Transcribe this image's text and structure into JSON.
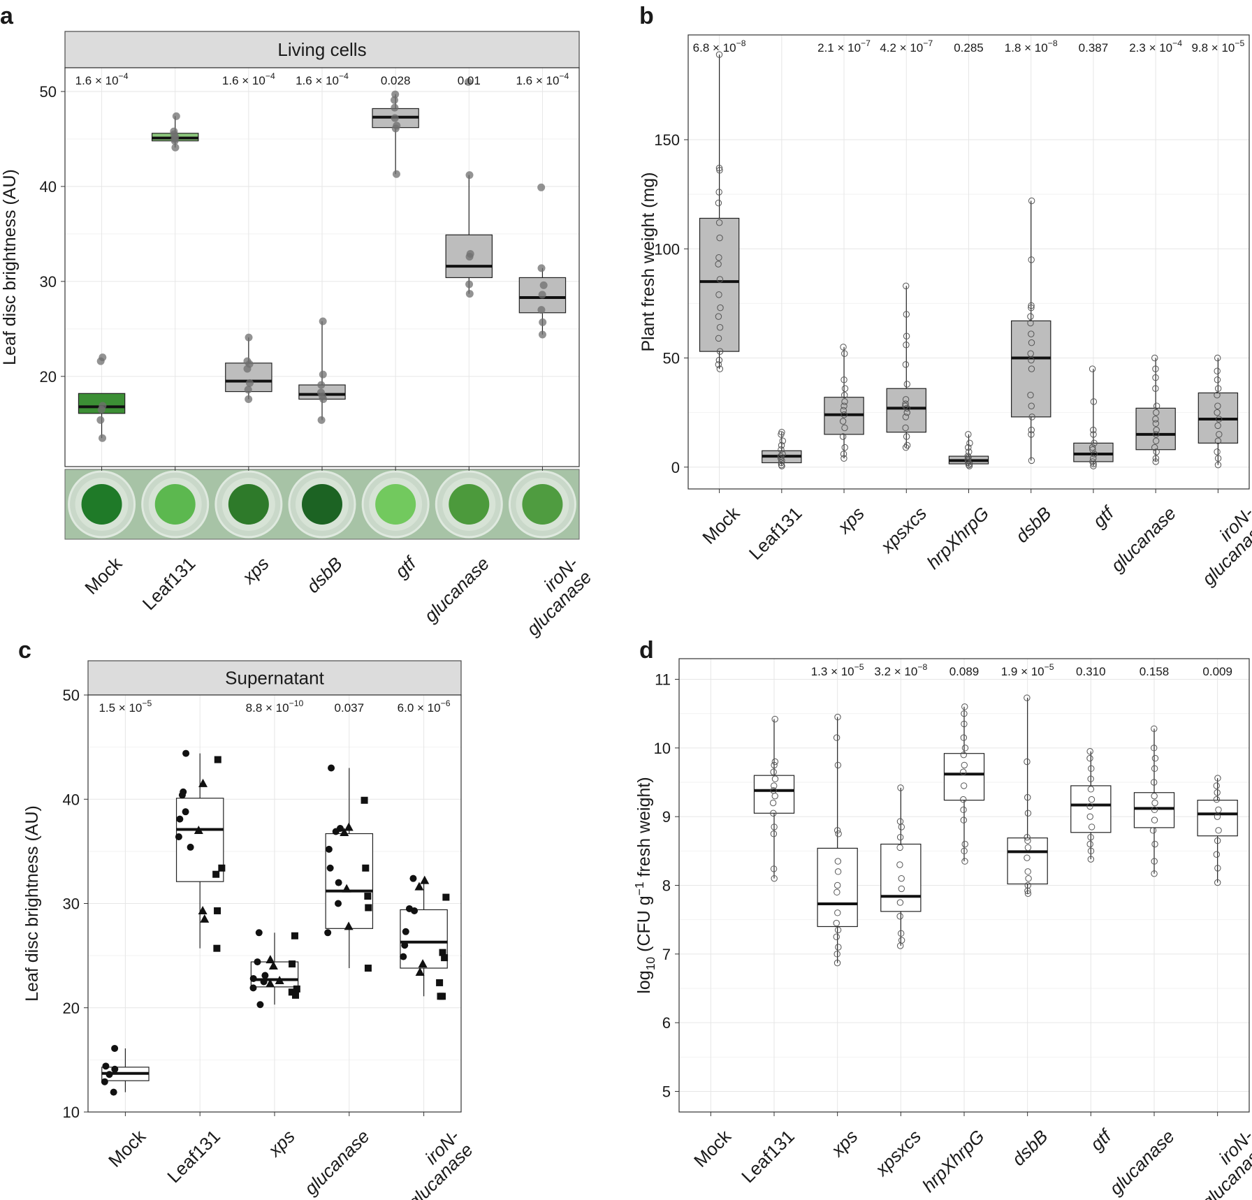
{
  "panel_labels": [
    "a",
    "b",
    "c",
    "d"
  ],
  "chart_data": [
    {
      "id": "a",
      "type": "box",
      "title": "Living cells",
      "ylabel": "Leaf disc brightness (AU)",
      "ylim": [
        10.5,
        52.5
      ],
      "yticks": [
        20,
        30,
        40,
        50
      ],
      "categories": [
        "Mock",
        "Leaf131",
        "xps",
        "dsbB",
        "gtf",
        "glucanase",
        "iroN-\nglucanase"
      ],
      "pvalues": [
        "1.6 × 10^-4",
        "",
        "1.6 × 10^-4",
        "1.6 × 10^-4",
        "0.028",
        "0.01",
        "1.6 × 10^-4"
      ],
      "box_colors": [
        "#3c8f35",
        "#8cc87c",
        "#bdbdbd",
        "#bdbdbd",
        "#bdbdbd",
        "#bdbdbd",
        "#bdbdbd"
      ],
      "boxes": [
        {
          "q1": 16.1,
          "median": 16.8,
          "q3": 18.2,
          "wlo": 13.5,
          "whi": 18.2
        },
        {
          "q1": 44.8,
          "median": 45.1,
          "q3": 45.6,
          "wlo": 44.1,
          "whi": 47.4
        },
        {
          "q1": 18.4,
          "median": 19.5,
          "q3": 21.4,
          "wlo": 17.6,
          "whi": 24.1
        },
        {
          "q1": 17.6,
          "median": 18.1,
          "q3": 19.1,
          "wlo": 15.4,
          "whi": 25.8
        },
        {
          "q1": 46.2,
          "median": 47.3,
          "q3": 48.2,
          "wlo": 41.3,
          "whi": 49.7
        },
        {
          "q1": 30.4,
          "median": 31.6,
          "q3": 34.9,
          "wlo": 28.7,
          "whi": 41.2
        },
        {
          "q1": 26.7,
          "median": 28.3,
          "q3": 30.4,
          "wlo": 24.4,
          "whi": 31.4
        }
      ],
      "points": [
        [
          13.5,
          15.4,
          16.5,
          16.9,
          21.6,
          22.0
        ],
        [
          44.1,
          44.8,
          45.0,
          45.2,
          45.5,
          45.8,
          47.4
        ],
        [
          17.6,
          18.6,
          19.3,
          20.8,
          21.3,
          21.6,
          24.1
        ],
        [
          15.4,
          17.6,
          17.9,
          18.3,
          19.1,
          20.2,
          25.8
        ],
        [
          41.3,
          46.1,
          46.4,
          47.2,
          48.3,
          49.1,
          49.7
        ],
        [
          28.7,
          29.7,
          32.6,
          32.9,
          41.2,
          51.0
        ],
        [
          24.4,
          25.7,
          27.0,
          28.6,
          29.6,
          31.4,
          39.9
        ]
      ],
      "image_strip": {
        "well_colors": [
          "#1f7a28",
          "#5cb84f",
          "#2e7a2a",
          "#1c6323",
          "#72c95e",
          "#4c9a3c",
          "#4f9c40"
        ],
        "background": "#a7c3a6"
      }
    },
    {
      "id": "b",
      "type": "box",
      "title": "",
      "ylabel": "Plant fresh weight (mg)",
      "ylim": [
        -10,
        198
      ],
      "yticks": [
        0,
        50,
        100,
        150
      ],
      "categories": [
        "Mock",
        "Leaf131",
        "xps",
        "xpsxcs",
        "hrpXhrpG",
        "dsbB",
        "gtf",
        "glucanase",
        "iroN-\nglucanase"
      ],
      "pvalues": [
        "6.8 × 10^-8",
        "",
        "2.1 × 10^-7",
        "4.2 × 10^-7",
        "0.285",
        "1.8 × 10^-8",
        "0.387",
        "2.3 × 10^-4",
        "9.8 × 10^-5"
      ],
      "box_colors": [
        "#bdbdbd",
        "#bdbdbd",
        "#bdbdbd",
        "#bdbdbd",
        "#bdbdbd",
        "#bdbdbd",
        "#bdbdbd",
        "#bdbdbd",
        "#bdbdbd"
      ],
      "boxes": [
        {
          "q1": 53,
          "median": 85,
          "q3": 114,
          "wlo": 45,
          "whi": 189
        },
        {
          "q1": 2,
          "median": 5,
          "q3": 7.5,
          "wlo": 0.5,
          "whi": 16
        },
        {
          "q1": 15,
          "median": 24,
          "q3": 32,
          "wlo": 4,
          "whi": 55
        },
        {
          "q1": 16,
          "median": 27,
          "q3": 36,
          "wlo": 9,
          "whi": 83
        },
        {
          "q1": 1.5,
          "median": 3,
          "q3": 5,
          "wlo": 0.5,
          "whi": 15
        },
        {
          "q1": 23,
          "median": 50,
          "q3": 67,
          "wlo": 3,
          "whi": 122
        },
        {
          "q1": 2.5,
          "median": 6,
          "q3": 11,
          "wlo": 0.5,
          "whi": 45
        },
        {
          "q1": 8,
          "median": 15,
          "q3": 27,
          "wlo": 2.5,
          "whi": 50
        },
        {
          "q1": 11,
          "median": 22,
          "q3": 34,
          "wlo": 1,
          "whi": 50
        }
      ],
      "points": [
        [
          45,
          47,
          49,
          53,
          59,
          64,
          69,
          73,
          79,
          86,
          93,
          96,
          105,
          112,
          121,
          126,
          136,
          137,
          189
        ],
        [
          0.5,
          1,
          2,
          3,
          4,
          5,
          6,
          8,
          10,
          12,
          15,
          16
        ],
        [
          4,
          6,
          9,
          14,
          18,
          21,
          24,
          26,
          28,
          30,
          33,
          36,
          40,
          52,
          55
        ],
        [
          9,
          10,
          14,
          18,
          23,
          25,
          27,
          28,
          29,
          31,
          38,
          47,
          56,
          60,
          70,
          83
        ],
        [
          0.5,
          1,
          1.5,
          2,
          3,
          3.5,
          4.5,
          5,
          7,
          9,
          11,
          15
        ],
        [
          3,
          15,
          17,
          23,
          28,
          33,
          45,
          49,
          52,
          57,
          61,
          66,
          69,
          73,
          74,
          95,
          122
        ],
        [
          0.5,
          1.5,
          2.5,
          4,
          6,
          8,
          9,
          11,
          15,
          17,
          30,
          45
        ],
        [
          2.5,
          4,
          7,
          9,
          12,
          15,
          17,
          20,
          22,
          25,
          28,
          36,
          41,
          45,
          50
        ],
        [
          1,
          4,
          7,
          12,
          15,
          19,
          22,
          25,
          28,
          33,
          36,
          40,
          44,
          50
        ]
      ]
    },
    {
      "id": "c",
      "type": "box",
      "title": "Supernatant",
      "ylabel": "Leaf disc brightness (AU)",
      "ylim": [
        10,
        50
      ],
      "yticks": [
        10,
        20,
        30,
        40,
        50
      ],
      "categories": [
        "Mock",
        "Leaf131",
        "xps",
        "glucanase",
        "iroN-\nglucanase"
      ],
      "pvalues": [
        "1.5 × 10^-5",
        "",
        "8.8 × 10^-10",
        "0.037",
        "6.0 × 10^-6"
      ],
      "box_colors": [
        "#ffffff",
        "#ffffff",
        "#ffffff",
        "#ffffff",
        "#ffffff"
      ],
      "boxes": [
        {
          "q1": 13.0,
          "median": 13.7,
          "q3": 14.3,
          "wlo": 11.9,
          "whi": 16.1
        },
        {
          "q1": 32.1,
          "median": 37.1,
          "q3": 40.1,
          "wlo": 25.7,
          "whi": 44.4
        },
        {
          "q1": 22.0,
          "median": 22.7,
          "q3": 24.4,
          "wlo": 20.3,
          "whi": 27.2
        },
        {
          "q1": 27.6,
          "median": 31.2,
          "q3": 36.7,
          "wlo": 23.8,
          "whi": 43.0
        },
        {
          "q1": 23.8,
          "median": 26.3,
          "q3": 29.4,
          "wlo": 21.1,
          "whi": 32.3
        }
      ],
      "points": [
        {
          "circle": [
            11.9,
            12.9,
            13.6,
            14.1,
            14.4,
            16.1
          ],
          "triangle": [],
          "square": []
        },
        {
          "circle": [
            44.4,
            40.7,
            40.4,
            38.8,
            38.1,
            36.4,
            35.4
          ],
          "triangle": [
            41.5,
            37.0,
            29.3,
            28.5
          ],
          "square": [
            43.8,
            33.4,
            32.8,
            29.3,
            25.7
          ]
        },
        {
          "circle": [
            27.2,
            24.4,
            23.1,
            22.8,
            22.5,
            21.9,
            20.3
          ],
          "triangle": [
            24.6,
            24.0,
            22.6,
            22.3
          ],
          "square": [
            26.9,
            24.2,
            21.8,
            21.5,
            21.2
          ]
        },
        {
          "circle": [
            43.0,
            37.2,
            36.9,
            35.2,
            33.4,
            32.0,
            30.0,
            27.2
          ],
          "triangle": [
            37.3,
            36.8,
            31.4,
            27.8
          ],
          "square": [
            39.9,
            33.4,
            30.7,
            29.6,
            23.8
          ]
        },
        {
          "circle": [
            32.4,
            29.5,
            29.3,
            27.3,
            26.0,
            24.9
          ],
          "triangle": [
            32.2,
            31.6,
            24.2,
            23.4
          ],
          "square": [
            30.6,
            25.3,
            24.8,
            22.4,
            21.1,
            21.1
          ]
        }
      ]
    },
    {
      "id": "d",
      "type": "box",
      "title": "",
      "ylabel": "log10 (CFU g^-1 fresh weight)",
      "ylim": [
        4.7,
        11.3
      ],
      "yticks": [
        5,
        6,
        7,
        8,
        9,
        10,
        11
      ],
      "categories": [
        "Mock",
        "Leaf131",
        "xps",
        "xpsxcs",
        "hrpXhrpG",
        "dsbB",
        "gtf",
        "glucanase",
        "iroN-\nglucanase"
      ],
      "pvalues": [
        "",
        "",
        "1.3 × 10^-5",
        "3.2 × 10^-8",
        "0.089",
        "1.9 × 10^-5",
        "0.310",
        "0.158",
        "0.009"
      ],
      "box_colors": [
        "#ffffff",
        "#ffffff",
        "#ffffff",
        "#ffffff",
        "#ffffff",
        "#ffffff",
        "#ffffff",
        "#ffffff",
        "#ffffff"
      ],
      "boxes": [
        null,
        {
          "q1": 9.05,
          "median": 9.38,
          "q3": 9.6,
          "wlo": 8.1,
          "whi": 10.42
        },
        {
          "q1": 7.4,
          "median": 7.73,
          "q3": 8.54,
          "wlo": 6.87,
          "whi": 10.45
        },
        {
          "q1": 7.62,
          "median": 7.84,
          "q3": 8.6,
          "wlo": 7.12,
          "whi": 9.42
        },
        {
          "q1": 9.24,
          "median": 9.62,
          "q3": 9.92,
          "wlo": 8.35,
          "whi": 10.6
        },
        {
          "q1": 8.02,
          "median": 8.49,
          "q3": 8.69,
          "wlo": 7.88,
          "whi": 10.73
        },
        {
          "q1": 8.77,
          "median": 9.17,
          "q3": 9.45,
          "wlo": 8.38,
          "whi": 9.95
        },
        {
          "q1": 8.84,
          "median": 9.12,
          "q3": 9.35,
          "wlo": 8.17,
          "whi": 10.28
        },
        {
          "q1": 8.72,
          "median": 9.04,
          "q3": 9.24,
          "wlo": 8.04,
          "whi": 9.56
        }
      ],
      "points": [
        [],
        [
          8.1,
          8.24,
          8.75,
          8.85,
          9.05,
          9.2,
          9.3,
          9.38,
          9.45,
          9.55,
          9.65,
          9.75,
          9.8,
          10.42
        ],
        [
          6.87,
          7.0,
          7.1,
          7.25,
          7.35,
          7.45,
          7.6,
          7.9,
          8.0,
          8.2,
          8.35,
          8.75,
          8.8,
          9.75,
          10.15,
          10.45
        ],
        [
          7.12,
          7.2,
          7.3,
          7.55,
          7.75,
          7.95,
          8.1,
          8.3,
          8.55,
          8.7,
          8.85,
          8.93,
          9.42
        ],
        [
          8.35,
          8.5,
          8.6,
          8.95,
          9.1,
          9.25,
          9.45,
          9.65,
          9.75,
          9.9,
          10.0,
          10.15,
          10.35,
          10.5,
          10.6
        ],
        [
          7.88,
          7.92,
          8.0,
          8.1,
          8.2,
          8.4,
          8.55,
          8.65,
          8.7,
          9.05,
          9.28,
          9.8,
          10.73
        ],
        [
          8.38,
          8.5,
          8.6,
          8.7,
          8.85,
          9.0,
          9.15,
          9.25,
          9.4,
          9.55,
          9.7,
          9.85,
          9.95
        ],
        [
          8.17,
          8.35,
          8.6,
          8.8,
          8.95,
          9.1,
          9.2,
          9.3,
          9.5,
          9.7,
          9.85,
          10.0,
          10.28
        ],
        [
          8.04,
          8.25,
          8.45,
          8.65,
          8.8,
          9.0,
          9.1,
          9.25,
          9.35,
          9.45,
          9.56
        ]
      ]
    }
  ]
}
